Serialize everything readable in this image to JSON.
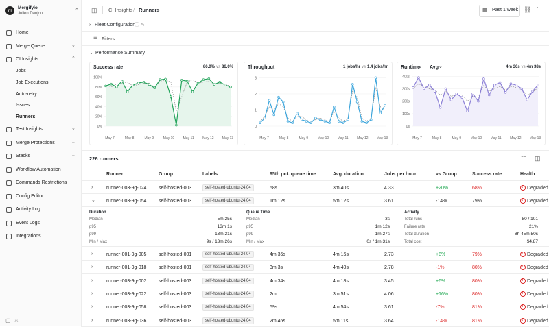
{
  "sidebar": {
    "org": "Mergifyio",
    "user": "Julien Danjou",
    "nav": [
      {
        "label": "Home"
      },
      {
        "label": "Merge Queue",
        "expandable": true
      },
      {
        "label": "CI Insights",
        "expandable": true,
        "children": [
          "Jobs",
          "Job Executions",
          "Auto-retry",
          "Issues",
          "Runners"
        ],
        "active_child": 4
      },
      {
        "label": "Test Insights",
        "expandable": true
      },
      {
        "label": "Merge Protections",
        "expandable": true
      },
      {
        "label": "Stacks",
        "expandable": true
      },
      {
        "label": "Workflow Automation"
      },
      {
        "label": "Commands Restrictions"
      },
      {
        "label": "Config Editor"
      },
      {
        "label": "Activity Log"
      },
      {
        "label": "Event Logs"
      },
      {
        "label": "Integrations"
      }
    ]
  },
  "topbar": {
    "breadcrumb": [
      "CI Insights",
      "Runners"
    ],
    "period": "Past 1 week"
  },
  "sections": {
    "fleet": "Fleet Configuration",
    "filters": "Filters",
    "performance": "Performance Summary"
  },
  "charts": [
    {
      "title": "Success rate",
      "current": "86.0%",
      "vs": "vs",
      "previous": "86.0%",
      "color": "#22a35a",
      "fill": "#e6f5ec",
      "ylim": [
        0,
        112
      ],
      "yticks": [
        {
          "value": 0,
          "label": "0%"
        },
        {
          "value": 20,
          "label": "20%"
        },
        {
          "value": 40,
          "label": "40%"
        },
        {
          "value": 60,
          "label": "60%"
        },
        {
          "value": 80,
          "label": "80%"
        },
        {
          "value": 100,
          "label": "100%"
        }
      ],
      "xticks": [
        "May 7",
        "May 8",
        "May 9",
        "May 10",
        "May 11",
        "May 12",
        "May 13"
      ],
      "values": [
        82,
        86,
        80,
        92,
        70,
        84,
        88,
        90,
        85,
        78,
        95,
        96,
        60,
        2,
        94,
        92,
        70,
        88,
        95,
        97,
        85,
        90,
        84,
        80
      ],
      "previous_values": [
        84,
        80,
        86,
        88,
        90,
        82,
        85,
        87,
        88,
        80,
        92,
        94,
        90,
        30,
        60,
        90,
        95,
        88,
        90,
        92,
        86,
        88,
        85,
        82
      ]
    },
    {
      "title": "Throughput",
      "current": "1 jobs/hr",
      "vs": "vs",
      "previous": "1.4 jobs/hr",
      "color": "#3ea6dc",
      "fill": "none",
      "ylim": [
        0,
        3.4
      ],
      "yticks": [
        0,
        1,
        2,
        3
      ],
      "xticks": [
        "May 7",
        "May 8",
        "May 9",
        "May 10",
        "May 11",
        "May 12",
        "May 13"
      ],
      "values": [
        0.2,
        0.5,
        1.6,
        0.7,
        1.8,
        1.5,
        0.3,
        0.2,
        0.8,
        0.4,
        0.3,
        0.2,
        0.5,
        0.4,
        0.3,
        0.2,
        1.2,
        0.3,
        0.2,
        0.4,
        2.6,
        1.5,
        0.3,
        0.2,
        0.4,
        3.0,
        0.8,
        1.3
      ],
      "previous_values": [
        0.3,
        0.6,
        1.2,
        1.0,
        1.4,
        1.2,
        0.5,
        0.3,
        0.6,
        0.6,
        0.4,
        0.3,
        0.4,
        0.5,
        0.4,
        0.3,
        0.9,
        0.5,
        0.3,
        0.5,
        2.2,
        1.8,
        0.5,
        0.3,
        0.5,
        2.4,
        1.2,
        1.0
      ]
    },
    {
      "title": "Runtime",
      "selector": "Avg",
      "current": "4m 36s",
      "vs": "vs",
      "previous": "4m 38s",
      "color": "#8b7fd6",
      "fill": "#f1effb",
      "ylim": [
        0,
        440
      ],
      "yticks": [
        {
          "value": 0,
          "label": "0s"
        },
        {
          "value": 100,
          "label": "100s"
        },
        {
          "value": 200,
          "label": "200s"
        },
        {
          "value": 300,
          "label": "300s"
        },
        {
          "value": 400,
          "label": "400s"
        }
      ],
      "xticks": [
        "May 7",
        "May 8",
        "May 9",
        "May 10",
        "May 11",
        "May 12",
        "May 13"
      ],
      "values": [
        310,
        390,
        300,
        330,
        280,
        150,
        300,
        210,
        260,
        230,
        120,
        260,
        200,
        380,
        250,
        330,
        350,
        270,
        340,
        330,
        300,
        210,
        280,
        330
      ],
      "previous_values": [
        300,
        340,
        320,
        300,
        290,
        250,
        280,
        240,
        250,
        250,
        200,
        240,
        230,
        330,
        280,
        300,
        320,
        290,
        320,
        310,
        290,
        250,
        270,
        310
      ]
    }
  ],
  "table": {
    "count": "226 runners",
    "columns": [
      "Runner",
      "Group",
      "Labels",
      "95th pct. queue time",
      "Avg. duration",
      "Jobs per hour",
      "vs Group",
      "Success rate",
      "Health"
    ],
    "rows": [
      [
        "runner-003-9g-024",
        "self-hosted-003",
        "self-hosted-ubuntu-24.04",
        "58s",
        "3m 40s",
        "4.33",
        "+20%",
        "68%",
        "Degraded"
      ],
      [
        "runner-003-9g-054",
        "self-hosted-003",
        "self-hosted-ubuntu-24.04",
        "1m 12s",
        "5m 12s",
        "3.61",
        "-14%",
        "79%",
        "Degraded"
      ],
      [
        "runner-001-9g-005",
        "self-hosted-001",
        "self-hosted-ubuntu-24.04",
        "4m 35s",
        "4m 16s",
        "2.73",
        "+8%",
        "79%",
        "Degraded"
      ],
      [
        "runner-001-9g-018",
        "self-hosted-001",
        "self-hosted-ubuntu-24.04",
        "3m 3s",
        "4m 40s",
        "2.78",
        "-1%",
        "80%",
        "Degraded"
      ],
      [
        "runner-003-9g-002",
        "self-hosted-003",
        "self-hosted-ubuntu-24.04",
        "4m 34s",
        "4m 18s",
        "3.45",
        "+6%",
        "80%",
        "Degraded"
      ],
      [
        "runner-003-9g-022",
        "self-hosted-003",
        "self-hosted-ubuntu-24.04",
        "2m",
        "3m 51s",
        "4.06",
        "+16%",
        "80%",
        "Degraded"
      ],
      [
        "runner-003-9g-058",
        "self-hosted-003",
        "self-hosted-ubuntu-24.04",
        "59s",
        "4m 54s",
        "3.61",
        "-7%",
        "81%",
        "Degraded"
      ],
      [
        "runner-003-9g-036",
        "self-hosted-003",
        "self-hosted-ubuntu-24.04",
        "2m 46s",
        "5m 11s",
        "3.64",
        "-14%",
        "81%",
        "Degraded"
      ]
    ],
    "expanded_row": 1,
    "details": [
      {
        "title": "Duration",
        "items": [
          [
            "Median",
            "5m 25s"
          ],
          [
            "p95",
            "13m 1s"
          ],
          [
            "p99",
            "13m 21s"
          ],
          [
            "Min / Max",
            "9s / 13m 26s"
          ]
        ]
      },
      {
        "title": "Queue Time",
        "items": [
          [
            "Median",
            "3s"
          ],
          [
            "p95",
            "1m 12s"
          ],
          [
            "p99",
            "1m 27s"
          ],
          [
            "Min / Max",
            "0s / 1m 31s"
          ]
        ]
      },
      {
        "title": "Activity",
        "items": [
          [
            "Total runs",
            "80 / 101"
          ],
          [
            "Failure rate",
            "21%"
          ],
          [
            "Total duration",
            "8h 45m 50s"
          ],
          [
            "Total cost",
            "$4.87"
          ]
        ]
      }
    ]
  }
}
